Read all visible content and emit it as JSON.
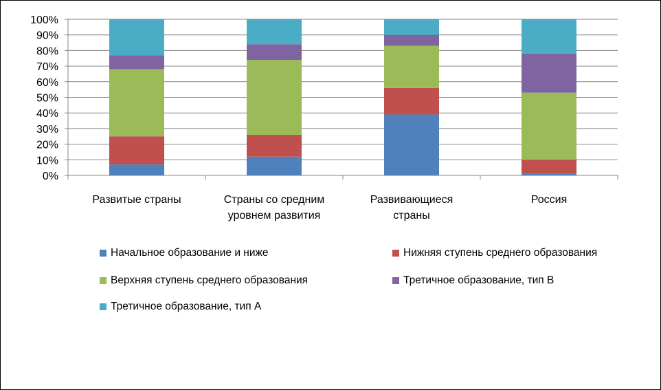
{
  "chart_data": {
    "type": "bar",
    "stacked": true,
    "percent": true,
    "categories": [
      [
        "Развитые страны"
      ],
      [
        "Страны со средним",
        "уровнем развития"
      ],
      [
        "Развивающиеся",
        "страны"
      ],
      [
        "Россия"
      ]
    ],
    "ylim": [
      0,
      100
    ],
    "yticks": [
      "0%",
      "10%",
      "20%",
      "30%",
      "40%",
      "50%",
      "60%",
      "70%",
      "80%",
      "90%",
      "100%"
    ],
    "grid": true,
    "legend_position": "bottom",
    "series": [
      {
        "name": "Начальное образование и ниже",
        "color": "#4F81BD",
        "values": [
          7,
          12,
          39,
          1
        ]
      },
      {
        "name": "Нижняя ступень среднего образования",
        "color": "#C0504D",
        "values": [
          18,
          14,
          17,
          9
        ]
      },
      {
        "name": "Верхняя ступень среднего образования",
        "color": "#9BBB59",
        "values": [
          43,
          48,
          27,
          43
        ]
      },
      {
        "name": "Третичное образование, тип B",
        "color": "#8064A2",
        "values": [
          9,
          10,
          7,
          25
        ]
      },
      {
        "name": "Третичное образование, тип A",
        "color": "#4BACC6",
        "values": [
          23,
          16,
          10,
          22
        ]
      }
    ]
  }
}
